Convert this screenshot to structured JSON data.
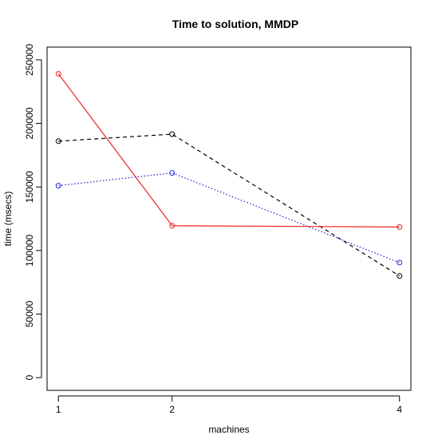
{
  "chart_data": {
    "type": "line",
    "title": "Time to solution, MMDP",
    "xlabel": "machines",
    "ylabel": "time (msecs)",
    "x": [
      1,
      2,
      4
    ],
    "x_ticks": [
      "1",
      "2",
      "4"
    ],
    "y_ticks": [
      "0",
      "50000",
      "100000",
      "150000",
      "200000",
      "250000"
    ],
    "xlim": [
      0.9,
      4.1
    ],
    "ylim": [
      -10000,
      260000
    ],
    "grid": false,
    "legend": "none",
    "series": [
      {
        "values": [
          186000,
          191500,
          80000
        ],
        "color": "#000000",
        "line_style": "dashed",
        "marker": "open-circle"
      },
      {
        "values": [
          151000,
          161000,
          90500
        ],
        "color": "#2222cc",
        "line_style": "dotted",
        "marker": "open-circle"
      },
      {
        "values": [
          239000,
          119500,
          118500
        ],
        "color": "#ee2222",
        "line_style": "solid",
        "marker": "open-circle"
      }
    ]
  }
}
